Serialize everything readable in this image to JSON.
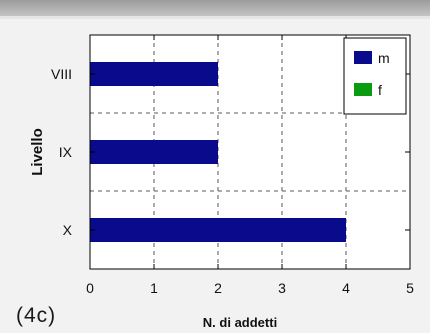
{
  "panel_label": "(4c)",
  "colors": {
    "m": "#0a0a8c",
    "f": "#0b9b10",
    "axis": "#000000",
    "grid": "#5a5a5a",
    "plot_bg": "#ffffff",
    "figure_bg": "#f2f2f2"
  },
  "chart_data": {
    "type": "bar",
    "orientation": "horizontal",
    "categories": [
      "VIII",
      "IX",
      "X"
    ],
    "series": [
      {
        "name": "m",
        "values": [
          2,
          2,
          4
        ]
      },
      {
        "name": "f",
        "values": [
          0,
          0,
          0
        ]
      }
    ],
    "xlabel": "N. di addetti",
    "ylabel": "Livello",
    "xlim": [
      0,
      5
    ],
    "xticks": [
      0,
      1,
      2,
      3,
      4,
      5
    ],
    "grid": true,
    "grid_style": "dashed",
    "legend_position": "top-right"
  }
}
